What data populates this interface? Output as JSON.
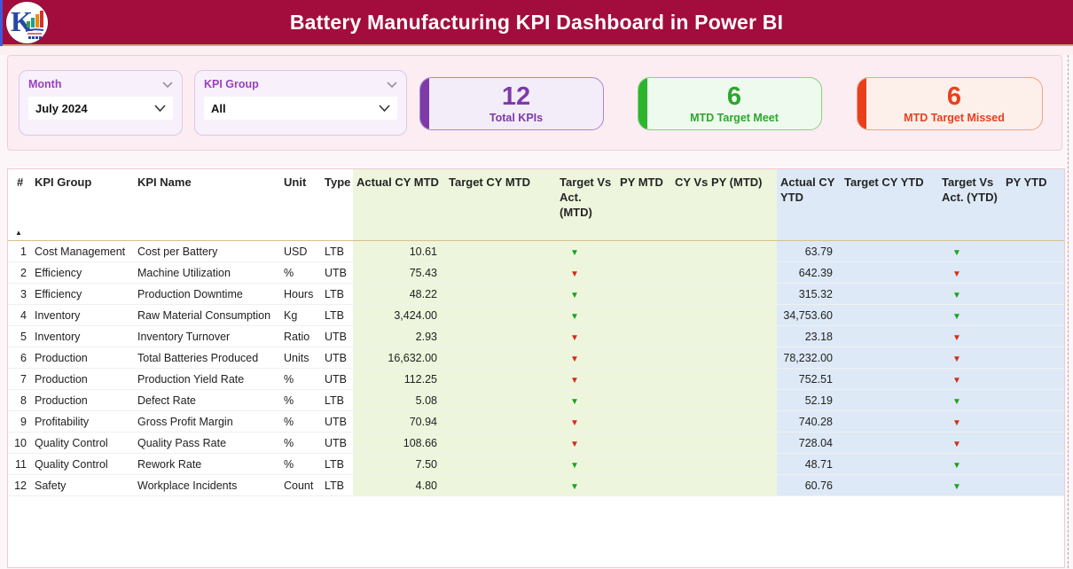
{
  "header": {
    "title": "Battery Manufacturing KPI Dashboard in Power BI",
    "logo_letter": "K"
  },
  "filters": {
    "month": {
      "label": "Month",
      "value": "July 2024"
    },
    "kpi_group": {
      "label": "KPI Group",
      "value": "All"
    }
  },
  "cards": [
    {
      "value": "12",
      "label": "Total KPIs"
    },
    {
      "value": "6",
      "label": "MTD Target Meet"
    },
    {
      "value": "6",
      "label": "MTD Target Missed"
    }
  ],
  "colors": {
    "header_bg": "#a30d3e",
    "card_purple_accent": "#7d3aa8",
    "card_green_accent": "#2db42d",
    "card_red_accent": "#e8401d",
    "mtd_section_bg": "#edf6dd",
    "ytd_section_bg": "#dde9f6",
    "indicator_green": "#1da11d",
    "indicator_red": "#d62b17"
  },
  "table": {
    "sort_icon": "▲",
    "indicator_glyph": "▼",
    "columns": [
      "#",
      "KPI Group",
      "KPI Name",
      "Unit",
      "Type",
      "Actual CY MTD",
      "Target CY MTD",
      "Target Vs Act. (MTD)",
      "PY MTD",
      "CY Vs PY (MTD)",
      "Actual CY YTD",
      "Target CY YTD",
      "Target Vs Act. (YTD)",
      "PY YTD"
    ],
    "rows": [
      {
        "num": "1",
        "group": "Cost Management",
        "name": "Cost per Battery",
        "unit": "USD",
        "type": "LTB",
        "actual_mtd": "10.61",
        "target_mtd": "",
        "ind_mtd": "green",
        "py_mtd": "",
        "cy_py_mtd": "",
        "actual_ytd": "63.79",
        "target_ytd": "",
        "ind_ytd": "green",
        "py_ytd": ""
      },
      {
        "num": "2",
        "group": "Efficiency",
        "name": "Machine Utilization",
        "unit": "%",
        "type": "UTB",
        "actual_mtd": "75.43",
        "target_mtd": "",
        "ind_mtd": "red",
        "py_mtd": "",
        "cy_py_mtd": "",
        "actual_ytd": "642.39",
        "target_ytd": "",
        "ind_ytd": "red",
        "py_ytd": ""
      },
      {
        "num": "3",
        "group": "Efficiency",
        "name": "Production Downtime",
        "unit": "Hours",
        "type": "LTB",
        "actual_mtd": "48.22",
        "target_mtd": "",
        "ind_mtd": "green",
        "py_mtd": "",
        "cy_py_mtd": "",
        "actual_ytd": "315.32",
        "target_ytd": "",
        "ind_ytd": "green",
        "py_ytd": ""
      },
      {
        "num": "4",
        "group": "Inventory",
        "name": "Raw Material Consumption",
        "unit": "Kg",
        "type": "LTB",
        "actual_mtd": "3,424.00",
        "target_mtd": "",
        "ind_mtd": "green",
        "py_mtd": "",
        "cy_py_mtd": "",
        "actual_ytd": "34,753.60",
        "target_ytd": "",
        "ind_ytd": "green",
        "py_ytd": ""
      },
      {
        "num": "5",
        "group": "Inventory",
        "name": "Inventory Turnover",
        "unit": "Ratio",
        "type": "UTB",
        "actual_mtd": "2.93",
        "target_mtd": "",
        "ind_mtd": "red",
        "py_mtd": "",
        "cy_py_mtd": "",
        "actual_ytd": "23.18",
        "target_ytd": "",
        "ind_ytd": "red",
        "py_ytd": ""
      },
      {
        "num": "6",
        "group": "Production",
        "name": "Total Batteries Produced",
        "unit": "Units",
        "type": "UTB",
        "actual_mtd": "16,632.00",
        "target_mtd": "",
        "ind_mtd": "red",
        "py_mtd": "",
        "cy_py_mtd": "",
        "actual_ytd": "78,232.00",
        "target_ytd": "",
        "ind_ytd": "red",
        "py_ytd": ""
      },
      {
        "num": "7",
        "group": "Production",
        "name": "Production Yield Rate",
        "unit": "%",
        "type": "UTB",
        "actual_mtd": "112.25",
        "target_mtd": "",
        "ind_mtd": "red",
        "py_mtd": "",
        "cy_py_mtd": "",
        "actual_ytd": "752.51",
        "target_ytd": "",
        "ind_ytd": "red",
        "py_ytd": ""
      },
      {
        "num": "8",
        "group": "Production",
        "name": "Defect Rate",
        "unit": "%",
        "type": "LTB",
        "actual_mtd": "5.08",
        "target_mtd": "",
        "ind_mtd": "green",
        "py_mtd": "",
        "cy_py_mtd": "",
        "actual_ytd": "52.19",
        "target_ytd": "",
        "ind_ytd": "green",
        "py_ytd": ""
      },
      {
        "num": "9",
        "group": "Profitability",
        "name": "Gross Profit Margin",
        "unit": "%",
        "type": "UTB",
        "actual_mtd": "70.94",
        "target_mtd": "",
        "ind_mtd": "red",
        "py_mtd": "",
        "cy_py_mtd": "",
        "actual_ytd": "740.28",
        "target_ytd": "",
        "ind_ytd": "red",
        "py_ytd": ""
      },
      {
        "num": "10",
        "group": "Quality Control",
        "name": "Quality Pass Rate",
        "unit": "%",
        "type": "UTB",
        "actual_mtd": "108.66",
        "target_mtd": "",
        "ind_mtd": "red",
        "py_mtd": "",
        "cy_py_mtd": "",
        "actual_ytd": "728.04",
        "target_ytd": "",
        "ind_ytd": "red",
        "py_ytd": ""
      },
      {
        "num": "11",
        "group": "Quality Control",
        "name": "Rework Rate",
        "unit": "%",
        "type": "LTB",
        "actual_mtd": "7.50",
        "target_mtd": "",
        "ind_mtd": "green",
        "py_mtd": "",
        "cy_py_mtd": "",
        "actual_ytd": "48.71",
        "target_ytd": "",
        "ind_ytd": "green",
        "py_ytd": ""
      },
      {
        "num": "12",
        "group": "Safety",
        "name": "Workplace Incidents",
        "unit": "Count",
        "type": "LTB",
        "actual_mtd": "4.80",
        "target_mtd": "",
        "ind_mtd": "green",
        "py_mtd": "",
        "cy_py_mtd": "",
        "actual_ytd": "60.76",
        "target_ytd": "",
        "ind_ytd": "green",
        "py_ytd": ""
      }
    ]
  }
}
